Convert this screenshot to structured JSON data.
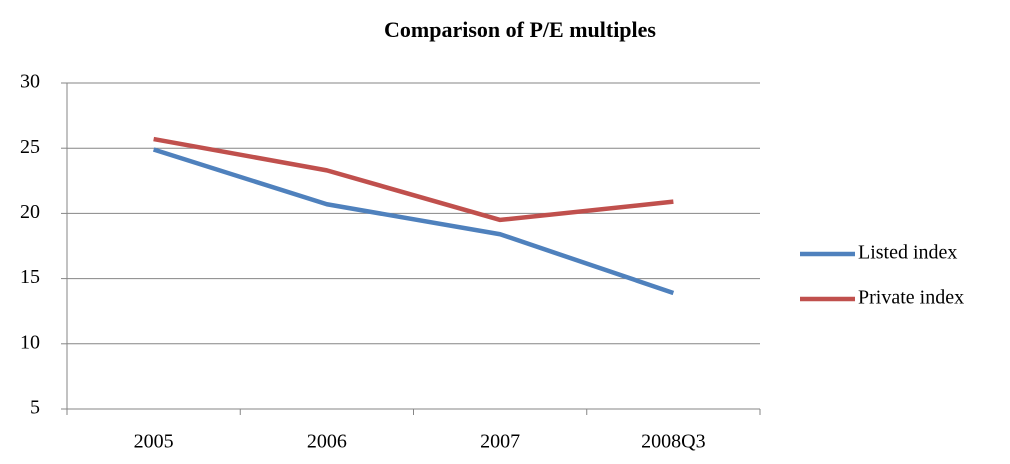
{
  "chart_data": {
    "type": "line",
    "title": "Comparison of P/E multiples",
    "categories": [
      "2005",
      "2006",
      "2007",
      "2008Q3"
    ],
    "series": [
      {
        "name": "Listed index",
        "color": "#4f81bd",
        "values": [
          24.9,
          20.7,
          18.4,
          13.9
        ]
      },
      {
        "name": "Private index",
        "color": "#c0504d",
        "values": [
          25.7,
          23.3,
          19.5,
          20.9
        ]
      }
    ],
    "ylim": [
      5,
      30
    ],
    "yticks": [
      5,
      10,
      15,
      20,
      25,
      30
    ],
    "grid": true,
    "legend": "right"
  }
}
